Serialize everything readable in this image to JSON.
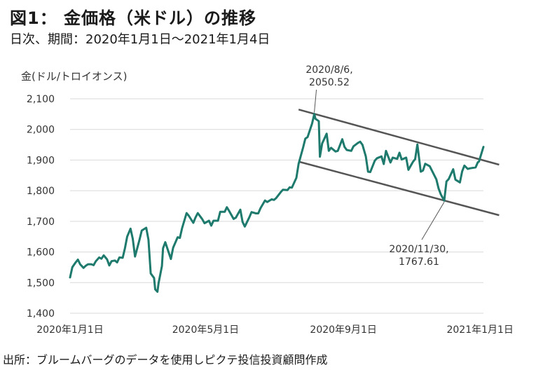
{
  "figure": {
    "title": "図1： 金価格（米ドル）の推移",
    "subtitle": "日次、期間：2020年1月1日～2021年1月4日",
    "source": "出所：ブルームバーグのデータを使用しピクテ投信投資顧問作成"
  },
  "chart_data": {
    "type": "line",
    "title": "図1： 金価格（米ドル）の推移",
    "ylabel": "金(ドル/トロイオンス)",
    "xlabel": "",
    "ylim": [
      1400,
      2100
    ],
    "yticks": [
      "1,400",
      "1,500",
      "1,600",
      "1,700",
      "1,800",
      "1,900",
      "2,000",
      "2,100"
    ],
    "ytick_values": [
      1400,
      1500,
      1600,
      1700,
      1800,
      1900,
      2000,
      2100
    ],
    "xlim": [
      "2020-01-01",
      "2021-01-04"
    ],
    "xticks": [
      {
        "date": "2020-01-01",
        "label": "2020年1月1日"
      },
      {
        "date": "2020-05-01",
        "label": "2020年5月1日"
      },
      {
        "date": "2020-09-01",
        "label": "2020年9月1日"
      },
      {
        "date": "2021-01-01",
        "label": "2021年1月1日"
      }
    ],
    "grid": "horizontal",
    "line_color": "#1d7a6c",
    "channel_color": "#555555",
    "series": [
      {
        "points": [
          [
            "2020-01-01",
            1517
          ],
          [
            "2020-01-03",
            1550
          ],
          [
            "2020-01-06",
            1566
          ],
          [
            "2020-01-08",
            1575
          ],
          [
            "2020-01-10",
            1560
          ],
          [
            "2020-01-13",
            1548
          ],
          [
            "2020-01-15",
            1555
          ],
          [
            "2020-01-17",
            1560
          ],
          [
            "2020-01-20",
            1560
          ],
          [
            "2020-01-22",
            1557
          ],
          [
            "2020-01-24",
            1570
          ],
          [
            "2020-01-27",
            1582
          ],
          [
            "2020-01-29",
            1578
          ],
          [
            "2020-01-31",
            1589
          ],
          [
            "2020-02-03",
            1576
          ],
          [
            "2020-02-05",
            1556
          ],
          [
            "2020-02-07",
            1570
          ],
          [
            "2020-02-10",
            1572
          ],
          [
            "2020-02-12",
            1566
          ],
          [
            "2020-02-14",
            1582
          ],
          [
            "2020-02-17",
            1581
          ],
          [
            "2020-02-19",
            1612
          ],
          [
            "2020-02-21",
            1650
          ],
          [
            "2020-02-24",
            1676
          ],
          [
            "2020-02-26",
            1643
          ],
          [
            "2020-02-28",
            1585
          ],
          [
            "2020-03-03",
            1640
          ],
          [
            "2020-03-05",
            1670
          ],
          [
            "2020-03-09",
            1679
          ],
          [
            "2020-03-11",
            1640
          ],
          [
            "2020-03-13",
            1530
          ],
          [
            "2020-03-16",
            1515
          ],
          [
            "2020-03-17",
            1478
          ],
          [
            "2020-03-19",
            1470
          ],
          [
            "2020-03-20",
            1498
          ],
          [
            "2020-03-23",
            1554
          ],
          [
            "2020-03-24",
            1612
          ],
          [
            "2020-03-26",
            1632
          ],
          [
            "2020-03-31",
            1577
          ],
          [
            "2020-04-02",
            1614
          ],
          [
            "2020-04-06",
            1648
          ],
          [
            "2020-04-08",
            1646
          ],
          [
            "2020-04-10",
            1678
          ],
          [
            "2020-04-14",
            1727
          ],
          [
            "2020-04-16",
            1718
          ],
          [
            "2020-04-20",
            1695
          ],
          [
            "2020-04-22",
            1713
          ],
          [
            "2020-04-24",
            1727
          ],
          [
            "2020-04-28",
            1707
          ],
          [
            "2020-04-30",
            1694
          ],
          [
            "2020-05-04",
            1702
          ],
          [
            "2020-05-06",
            1686
          ],
          [
            "2020-05-08",
            1702
          ],
          [
            "2020-05-12",
            1702
          ],
          [
            "2020-05-14",
            1731
          ],
          [
            "2020-05-18",
            1731
          ],
          [
            "2020-05-20",
            1746
          ],
          [
            "2020-05-22",
            1734
          ],
          [
            "2020-05-26",
            1708
          ],
          [
            "2020-05-28",
            1712
          ],
          [
            "2020-06-01",
            1738
          ],
          [
            "2020-06-03",
            1698
          ],
          [
            "2020-06-05",
            1683
          ],
          [
            "2020-06-09",
            1713
          ],
          [
            "2020-06-11",
            1730
          ],
          [
            "2020-06-15",
            1726
          ],
          [
            "2020-06-17",
            1726
          ],
          [
            "2020-06-19",
            1743
          ],
          [
            "2020-06-23",
            1768
          ],
          [
            "2020-06-25",
            1763
          ],
          [
            "2020-06-29",
            1772
          ],
          [
            "2020-07-01",
            1770
          ],
          [
            "2020-07-03",
            1776
          ],
          [
            "2020-07-07",
            1795
          ],
          [
            "2020-07-09",
            1803
          ],
          [
            "2020-07-13",
            1802
          ],
          [
            "2020-07-15",
            1811
          ],
          [
            "2020-07-17",
            1810
          ],
          [
            "2020-07-21",
            1842
          ],
          [
            "2020-07-23",
            1888
          ],
          [
            "2020-07-27",
            1941
          ],
          [
            "2020-07-29",
            1970
          ],
          [
            "2020-07-31",
            1975
          ],
          [
            "2020-08-04",
            2019
          ],
          [
            "2020-08-06",
            2050.52
          ],
          [
            "2020-08-07",
            2035
          ],
          [
            "2020-08-10",
            2027
          ],
          [
            "2020-08-11",
            1911
          ],
          [
            "2020-08-13",
            1954
          ],
          [
            "2020-08-17",
            1986
          ],
          [
            "2020-08-19",
            1930
          ],
          [
            "2020-08-21",
            1940
          ],
          [
            "2020-08-25",
            1928
          ],
          [
            "2020-08-27",
            1930
          ],
          [
            "2020-08-31",
            1968
          ],
          [
            "2020-09-02",
            1943
          ],
          [
            "2020-09-04",
            1933
          ],
          [
            "2020-09-08",
            1930
          ],
          [
            "2020-09-10",
            1945
          ],
          [
            "2020-09-14",
            1956
          ],
          [
            "2020-09-16",
            1960
          ],
          [
            "2020-09-18",
            1950
          ],
          [
            "2020-09-21",
            1912
          ],
          [
            "2020-09-23",
            1862
          ],
          [
            "2020-09-25",
            1861
          ],
          [
            "2020-09-29",
            1898
          ],
          [
            "2020-10-01",
            1906
          ],
          [
            "2020-10-05",
            1912
          ],
          [
            "2020-10-07",
            1887
          ],
          [
            "2020-10-09",
            1930
          ],
          [
            "2020-10-13",
            1892
          ],
          [
            "2020-10-15",
            1908
          ],
          [
            "2020-10-19",
            1904
          ],
          [
            "2020-10-21",
            1924
          ],
          [
            "2020-10-23",
            1902
          ],
          [
            "2020-10-27",
            1908
          ],
          [
            "2020-10-29",
            1868
          ],
          [
            "2020-11-02",
            1894
          ],
          [
            "2020-11-04",
            1903
          ],
          [
            "2020-11-06",
            1951
          ],
          [
            "2020-11-09",
            1862
          ],
          [
            "2020-11-11",
            1866
          ],
          [
            "2020-11-13",
            1888
          ],
          [
            "2020-11-17",
            1880
          ],
          [
            "2020-11-19",
            1866
          ],
          [
            "2020-11-23",
            1837
          ],
          [
            "2020-11-25",
            1807
          ],
          [
            "2020-11-27",
            1788
          ],
          [
            "2020-11-30",
            1767.61
          ],
          [
            "2020-12-02",
            1830
          ],
          [
            "2020-12-04",
            1838
          ],
          [
            "2020-12-08",
            1870
          ],
          [
            "2020-12-10",
            1836
          ],
          [
            "2020-12-14",
            1827
          ],
          [
            "2020-12-16",
            1863
          ],
          [
            "2020-12-18",
            1882
          ],
          [
            "2020-12-21",
            1871
          ],
          [
            "2020-12-23",
            1873
          ],
          [
            "2020-12-28",
            1876
          ],
          [
            "2020-12-30",
            1893
          ],
          [
            "2020-12-31",
            1895
          ],
          [
            "2021-01-04",
            1943
          ]
        ]
      }
    ],
    "channel_lines": [
      {
        "from": [
          "2020-07-23",
          2065
        ],
        "to": [
          "2021-01-18",
          1885
        ]
      },
      {
        "from": [
          "2020-07-23",
          1895
        ],
        "to": [
          "2021-01-18",
          1720
        ]
      }
    ],
    "annotations": [
      {
        "lines": [
          "2020/8/6,",
          "2050.52"
        ],
        "point": [
          "2020-08-06",
          2050.52
        ]
      },
      {
        "lines": [
          "2020/11/30,",
          "1767.61"
        ],
        "point": [
          "2020-11-30",
          1767.61
        ]
      }
    ]
  }
}
